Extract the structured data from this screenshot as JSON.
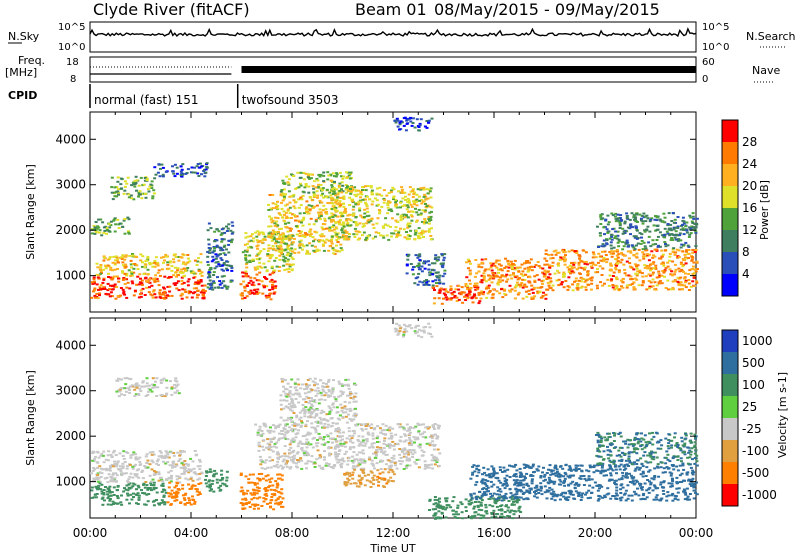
{
  "header": {
    "title": "Clyde River (fitACF)",
    "beam": "Beam 01",
    "dates": "08/May/2015 - 09/May/2015"
  },
  "strip_labels": {
    "nsky": "N.Sky",
    "nsearch": "N.Search",
    "freq": "Freq.",
    "freq_unit": "[MHz]",
    "nave": "Nave",
    "cpid": "CPID",
    "left_top_tick_hi": "10^5",
    "left_top_tick_lo": "10^0",
    "right_top_tick_hi": "10^5",
    "right_top_tick_lo": "10^0",
    "freq_tick_hi": "18",
    "freq_tick_lo": "8",
    "nave_tick_hi": "60",
    "nave_tick_lo": "0"
  },
  "cpid_segments": [
    {
      "label": "normal (fast) 151",
      "start_hour": 0.0,
      "end_hour": 5.85
    },
    {
      "label": "twofsound 3503",
      "start_hour": 5.85,
      "end_hour": 24.0
    }
  ],
  "colors": {
    "power_scale": [
      "#0000ff",
      "#2a4fb8",
      "#3f7f5f",
      "#4fa23a",
      "#dfe02a",
      "#ffb020",
      "#ff7a00",
      "#ff0000"
    ],
    "velocity_scale": [
      "#1f3fbf",
      "#2e6f9f",
      "#3f8f5f",
      "#5fcf3f",
      "#c8c8c8",
      "#e0a040",
      "#ff8000",
      "#ff0000"
    ]
  },
  "chart_data": [
    {
      "type": "heatmap",
      "name": "power",
      "xlabel": "",
      "ylabel": "Slant Range [km]",
      "x_range_hours": [
        0,
        24
      ],
      "ylim": [
        200,
        4600
      ],
      "yticks": [
        "1000",
        "2000",
        "3000",
        "4000"
      ],
      "colorbar_label": "Power [dB]",
      "colorbar_ticks": [
        "4",
        "8",
        "12",
        "16",
        "20",
        "24",
        "28"
      ],
      "regions": [
        {
          "t0": 0.0,
          "t1": 4.6,
          "r0": 500,
          "r1": 1000,
          "level": 28
        },
        {
          "t0": 0.2,
          "t1": 4.4,
          "r0": 1000,
          "r1": 1500,
          "level": 20
        },
        {
          "t0": 0.0,
          "t1": 1.5,
          "r0": 1900,
          "r1": 2300,
          "level": 14
        },
        {
          "t0": 0.8,
          "t1": 2.5,
          "r0": 2700,
          "r1": 3200,
          "level": 14
        },
        {
          "t0": 2.5,
          "t1": 4.6,
          "r0": 3200,
          "r1": 3500,
          "level": 6
        },
        {
          "t0": 4.6,
          "t1": 5.6,
          "r0": 700,
          "r1": 2200,
          "level": 8
        },
        {
          "t0": 5.9,
          "t1": 7.3,
          "r0": 500,
          "r1": 1100,
          "level": 28
        },
        {
          "t0": 6.0,
          "t1": 8.0,
          "r0": 1100,
          "r1": 2000,
          "level": 18
        },
        {
          "t0": 7.0,
          "t1": 10.0,
          "r0": 1500,
          "r1": 2800,
          "level": 20
        },
        {
          "t0": 7.5,
          "t1": 10.3,
          "r0": 2800,
          "r1": 3300,
          "level": 16
        },
        {
          "t0": 9.5,
          "t1": 13.5,
          "r0": 1800,
          "r1": 3000,
          "level": 18
        },
        {
          "t0": 12.0,
          "t1": 13.5,
          "r0": 4200,
          "r1": 4500,
          "level": 6
        },
        {
          "t0": 13.5,
          "t1": 15.5,
          "r0": 400,
          "r1": 800,
          "level": 28
        },
        {
          "t0": 14.8,
          "t1": 18.0,
          "r0": 500,
          "r1": 1400,
          "level": 24
        },
        {
          "t0": 18.0,
          "t1": 24.0,
          "r0": 700,
          "r1": 1600,
          "level": 24
        },
        {
          "t0": 20.0,
          "t1": 24.0,
          "r0": 1600,
          "r1": 2400,
          "level": 10
        },
        {
          "t0": 12.5,
          "t1": 14.0,
          "r0": 800,
          "r1": 1500,
          "level": 8
        }
      ]
    },
    {
      "type": "heatmap",
      "name": "velocity",
      "xlabel": "Time UT",
      "ylabel": "Slant Range [km]",
      "x_range_hours": [
        0,
        24
      ],
      "xticks": [
        "00:00",
        "04:00",
        "08:00",
        "12:00",
        "16:00",
        "20:00",
        "00:00"
      ],
      "ylim": [
        200,
        4600
      ],
      "yticks": [
        "1000",
        "2000",
        "3000",
        "4000"
      ],
      "colorbar_label": "Velocity [m s-1]",
      "colorbar_ticks": [
        "1000",
        "500",
        "100",
        "25",
        "-25",
        "-100",
        "-500",
        "-1000"
      ],
      "regions": [
        {
          "t0": 0.0,
          "t1": 3.0,
          "r0": 500,
          "r1": 1000,
          "level": 250
        },
        {
          "t0": 0.0,
          "t1": 4.4,
          "r0": 1000,
          "r1": 1700,
          "level": 0
        },
        {
          "t0": 3.0,
          "t1": 4.4,
          "r0": 500,
          "r1": 1000,
          "level": -300
        },
        {
          "t0": 1.0,
          "t1": 3.5,
          "r0": 2900,
          "r1": 3300,
          "level": 0
        },
        {
          "t0": 4.5,
          "t1": 5.4,
          "r0": 800,
          "r1": 1300,
          "level": 200
        },
        {
          "t0": 5.9,
          "t1": 7.6,
          "r0": 400,
          "r1": 1200,
          "level": -300
        },
        {
          "t0": 6.5,
          "t1": 13.8,
          "r0": 1300,
          "r1": 2300,
          "level": 0
        },
        {
          "t0": 7.5,
          "t1": 10.5,
          "r0": 2300,
          "r1": 3300,
          "level": 0
        },
        {
          "t0": 12.0,
          "t1": 13.5,
          "r0": 4200,
          "r1": 4500,
          "level": 0
        },
        {
          "t0": 13.3,
          "t1": 17.0,
          "r0": 200,
          "r1": 700,
          "level": 100
        },
        {
          "t0": 15.0,
          "t1": 24.0,
          "r0": 600,
          "r1": 1400,
          "level": 400
        },
        {
          "t0": 20.0,
          "t1": 24.0,
          "r0": 1400,
          "r1": 2100,
          "level": 300
        },
        {
          "t0": 10.0,
          "t1": 12.0,
          "r0": 900,
          "r1": 1300,
          "level": -80
        }
      ]
    }
  ]
}
